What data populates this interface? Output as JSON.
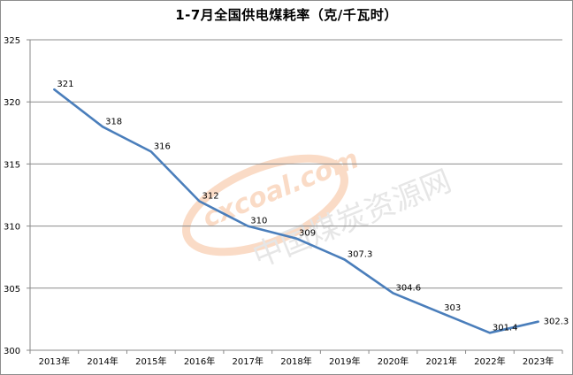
{
  "chart_data": {
    "type": "line",
    "title": "1-7月全国供电煤耗率（克/千瓦时）",
    "categories": [
      "2013年",
      "2014年",
      "2015年",
      "2016年",
      "2017年",
      "2018年",
      "2019年",
      "2020年",
      "2021年",
      "2022年",
      "2023年"
    ],
    "series": [
      {
        "values": [
          321,
          318,
          316,
          312,
          310,
          309,
          307.3,
          304.6,
          303,
          301.4,
          302.3
        ]
      }
    ],
    "data_labels": [
      "321",
      "318",
      "316",
      "312",
      "310",
      "309",
      "307.3",
      "304.6",
      "303",
      "301.4",
      "302.3"
    ],
    "ylim": [
      300,
      325
    ],
    "yticks": [
      300,
      305,
      310,
      315,
      320,
      325
    ],
    "grid": true,
    "legend": "none",
    "line_color": "#4a7ebb",
    "grid_color": "#8c8c8c"
  },
  "watermark": {
    "domain_text": "cxcoal.com",
    "site_text": "中国煤炭资源网",
    "color": "#f0b48a"
  }
}
